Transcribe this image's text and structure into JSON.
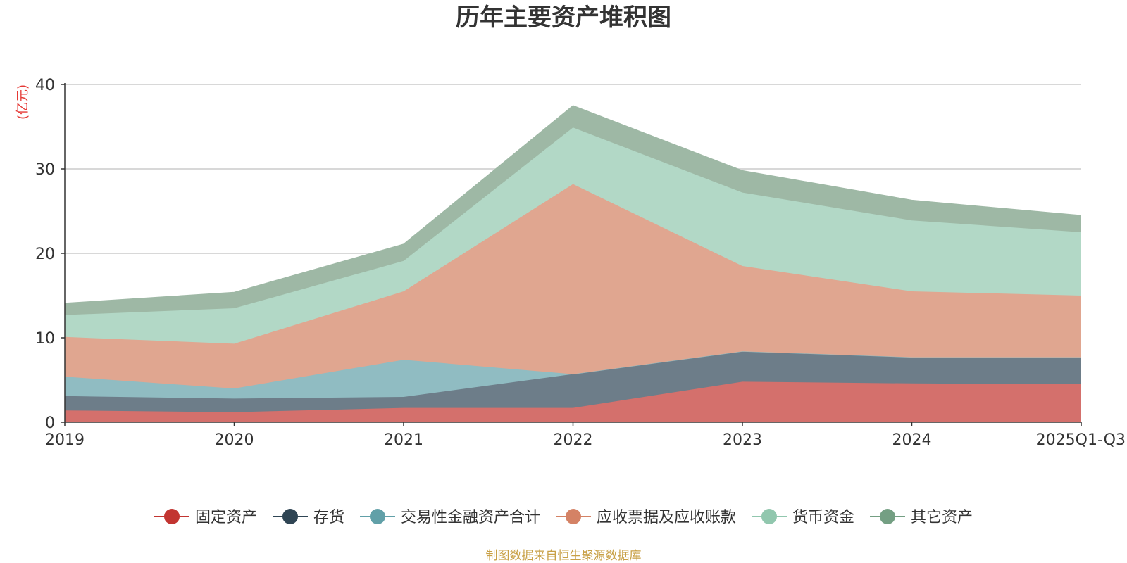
{
  "colors": {
    "text": "#333333",
    "grid": "#cccccc",
    "axis": "#333333",
    "unit": "#e53935",
    "source": "#c8a046"
  },
  "chart_data": {
    "type": "area",
    "stacked": true,
    "title": "历年主要资产堆积图",
    "ylabel": "(亿元)",
    "xlabel": "",
    "ylim": [
      0,
      40
    ],
    "yticks": [
      0,
      10,
      20,
      30,
      40
    ],
    "grid": true,
    "legend_position": "bottom",
    "source": "制图数据来自恒生聚源数据库",
    "categories": [
      "2019",
      "2020",
      "2021",
      "2022",
      "2023",
      "2024",
      "2025Q1-Q3"
    ],
    "series": [
      {
        "name": "固定资产",
        "color": "#c23531",
        "fill": "#d4706c",
        "values": [
          1.4,
          1.2,
          1.7,
          1.7,
          4.8,
          4.6,
          4.5
        ]
      },
      {
        "name": "存货",
        "color": "#2f4554",
        "fill": "#6d7d89",
        "values": [
          1.7,
          1.6,
          1.3,
          4.0,
          3.6,
          3.1,
          3.2
        ]
      },
      {
        "name": "交易性金融资产合计",
        "color": "#61a0a8",
        "fill": "#90bcc2",
        "values": [
          2.3,
          1.2,
          4.4,
          0.0,
          0.0,
          0.0,
          0.0
        ]
      },
      {
        "name": "应收票据及应收账款",
        "color": "#d48265",
        "fill": "#e0a690",
        "values": [
          4.7,
          5.3,
          8.1,
          22.5,
          10.1,
          7.8,
          7.3
        ]
      },
      {
        "name": "货币资金",
        "color": "#91c7ae",
        "fill": "#b2d8c6",
        "values": [
          2.6,
          4.2,
          3.6,
          6.7,
          8.7,
          8.4,
          7.5
        ]
      },
      {
        "name": "其它资产",
        "color": "#749f83",
        "fill": "#9eb8a5",
        "values": [
          1.4,
          1.9,
          2.0,
          2.6,
          2.6,
          2.4,
          2.0
        ]
      }
    ]
  }
}
